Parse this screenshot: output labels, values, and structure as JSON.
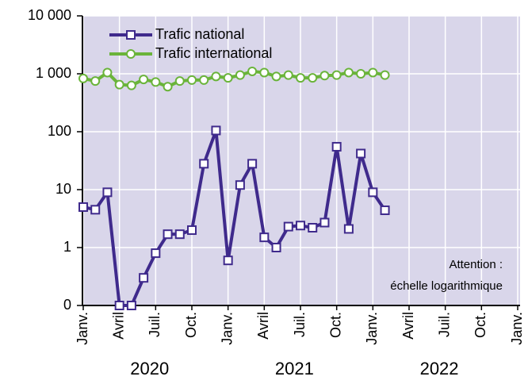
{
  "chart_data": {
    "type": "line",
    "log_scale": true,
    "grid": true,
    "legend": "top-left",
    "categories": [
      "Janv.",
      null,
      null,
      "Avril",
      null,
      null,
      "Juil.",
      null,
      null,
      "Oct.",
      null,
      null,
      "Janv.",
      null,
      null,
      "Avril",
      null,
      null,
      "Juil.",
      null,
      null,
      "Oct.",
      null,
      null,
      "Janv.",
      null,
      null,
      "Avril",
      null,
      null,
      "Juil.",
      null,
      null,
      "Oct.",
      null,
      null,
      "Janv."
    ],
    "year_labels": [
      "2020",
      "2021",
      "2022"
    ],
    "ylim": [
      0.1,
      10000
    ],
    "yticks": [
      {
        "value": 0.1,
        "label": "0"
      },
      1,
      10,
      100,
      {
        "value": 1000,
        "label": "1 000"
      },
      {
        "value": 10000,
        "label": "10 000"
      }
    ],
    "annotation": [
      "Attention :",
      "échelle logarithmique"
    ],
    "series": [
      {
        "name": "Trafic national",
        "color": "#3f2a8c",
        "marker": "square",
        "values": [
          5,
          4.5,
          9,
          0,
          0,
          0.3,
          0.8,
          1.7,
          1.7,
          2,
          28,
          105,
          0.6,
          12,
          28,
          1.5,
          1,
          2.3,
          2.4,
          2.2,
          2.7,
          55,
          2.1,
          42,
          9,
          4.4,
          null,
          null,
          null,
          null,
          null,
          null,
          null,
          null,
          null,
          null,
          null
        ]
      },
      {
        "name": "Trafic international",
        "color": "#6ab43a",
        "marker": "circle",
        "values": [
          830,
          750,
          1050,
          650,
          630,
          800,
          720,
          600,
          750,
          780,
          780,
          900,
          850,
          950,
          1100,
          1050,
          900,
          950,
          850,
          850,
          930,
          950,
          1050,
          1000,
          1050,
          950,
          null,
          null,
          null,
          null,
          null,
          null,
          null,
          null,
          null,
          null,
          null
        ]
      }
    ]
  }
}
